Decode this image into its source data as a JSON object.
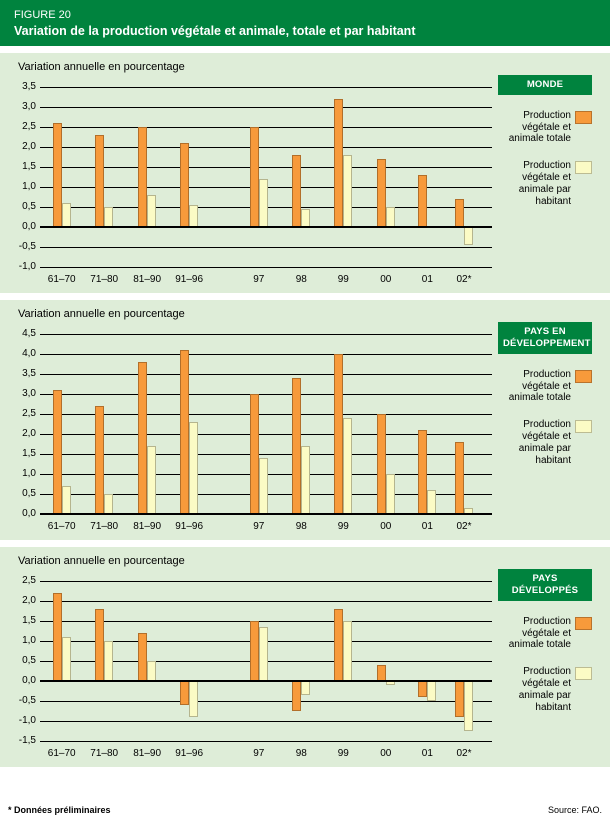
{
  "header": {
    "figure_label": "FIGURE 20",
    "title": "Variation de la production végétale et animale, totale et par habitant"
  },
  "footer": {
    "note": "* Données préliminaires",
    "source": "Source: FAO."
  },
  "colors": {
    "green": "#00833E",
    "background": "#DEEDD8",
    "orange": "#F79A3B",
    "yellow": "#FBFBC5"
  },
  "chart_data": [
    {
      "type": "bar",
      "region_label": "MONDE",
      "axis_title": "Variation annuelle en pourcentage",
      "ylabel": "Variation annuelle en pourcentage",
      "ylim": [
        -1.0,
        3.5
      ],
      "grid": true,
      "legend_position": "right",
      "ytick_values": [
        3.5,
        3.0,
        2.5,
        2.0,
        1.5,
        1.0,
        0.5,
        0.0,
        -0.5,
        -1.0
      ],
      "ytick_labels": [
        "3,5",
        "3,0",
        "2,5",
        "2,0",
        "1,5",
        "1,0",
        "0,5",
        "0,0",
        "-0,5",
        "-1,0"
      ],
      "categories": [
        "61–70",
        "71–80",
        "81–90",
        "91–96",
        "97",
        "98",
        "99",
        "00",
        "01",
        "02*"
      ],
      "series": [
        {
          "name": "Production végétale et animale totale",
          "color_key": "orange",
          "values": [
            2.6,
            2.3,
            2.5,
            2.1,
            2.5,
            1.8,
            3.2,
            1.7,
            1.3,
            0.7
          ]
        },
        {
          "name": "Production végétale et animale par habitant",
          "color_key": "yellow",
          "values": [
            0.6,
            0.5,
            0.8,
            0.55,
            1.2,
            0.45,
            1.8,
            0.5,
            0.0,
            -0.45
          ]
        }
      ]
    },
    {
      "type": "bar",
      "region_label": "PAYS EN DÉVELOPPEMENT",
      "axis_title": "Variation annuelle en pourcentage",
      "ylabel": "Variation annuelle en pourcentage",
      "ylim": [
        0.0,
        4.5
      ],
      "grid": true,
      "legend_position": "right",
      "ytick_values": [
        4.5,
        4.0,
        3.5,
        3.0,
        2.5,
        2.0,
        1.5,
        1.0,
        0.5,
        0.0
      ],
      "ytick_labels": [
        "4,5",
        "4,0",
        "3,5",
        "3,0",
        "2,5",
        "2,0",
        "1,5",
        "1,0",
        "0,5",
        "0,0"
      ],
      "categories": [
        "61–70",
        "71–80",
        "81–90",
        "91–96",
        "97",
        "98",
        "99",
        "00",
        "01",
        "02*"
      ],
      "series": [
        {
          "name": "Production végétale et animale totale",
          "color_key": "orange",
          "values": [
            3.1,
            2.7,
            3.8,
            4.1,
            3.0,
            3.4,
            4.0,
            2.5,
            2.1,
            1.8
          ]
        },
        {
          "name": "Production végétale et animale par habitant",
          "color_key": "yellow",
          "values": [
            0.7,
            0.5,
            1.7,
            2.3,
            1.4,
            1.7,
            2.4,
            1.0,
            0.6,
            0.15
          ]
        }
      ]
    },
    {
      "type": "bar",
      "region_label": "PAYS DÉVELOPPÉS",
      "axis_title": "Variation annuelle en pourcentage",
      "ylabel": "Variation annuelle en pourcentage",
      "ylim": [
        -1.5,
        2.5
      ],
      "grid": true,
      "legend_position": "right",
      "ytick_values": [
        2.5,
        2.0,
        1.5,
        1.0,
        0.5,
        0.0,
        -0.5,
        -1.0,
        -1.5
      ],
      "ytick_labels": [
        "2,5",
        "2,0",
        "1,5",
        "1,0",
        "0,5",
        "0,0",
        "-0,5",
        "-1,0",
        "-1,5"
      ],
      "categories": [
        "61–70",
        "71–80",
        "81–90",
        "91–96",
        "97",
        "98",
        "99",
        "00",
        "01",
        "02*"
      ],
      "series": [
        {
          "name": "Production végétale et animale totale",
          "color_key": "orange",
          "values": [
            2.2,
            1.8,
            1.2,
            -0.6,
            1.5,
            -0.75,
            1.8,
            0.4,
            -0.4,
            -0.9
          ]
        },
        {
          "name": "Production végétale et animale par habitant",
          "color_key": "yellow",
          "values": [
            1.1,
            1.0,
            0.5,
            -0.9,
            1.35,
            -0.35,
            1.5,
            -0.1,
            -0.5,
            -1.25
          ]
        }
      ]
    }
  ]
}
